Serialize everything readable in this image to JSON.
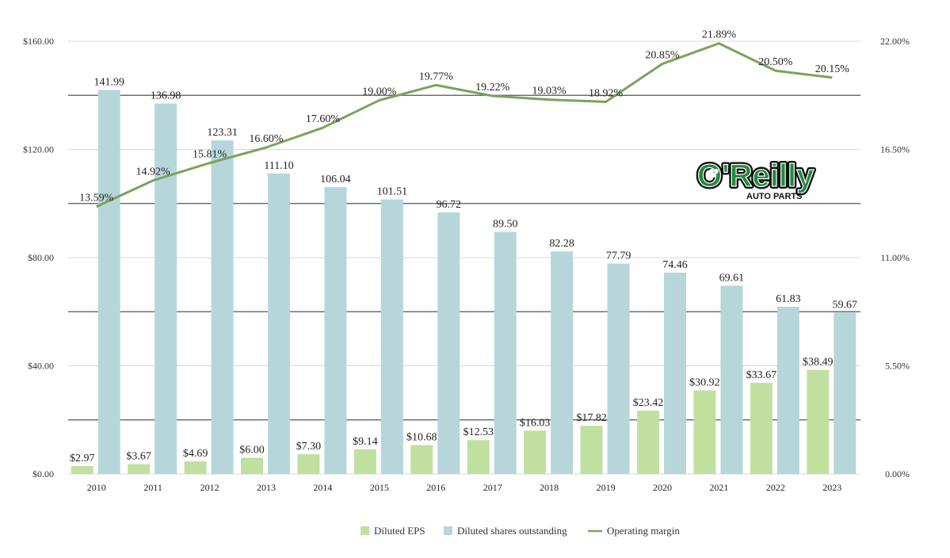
{
  "chart_data": {
    "type": "bar",
    "categories": [
      "2010",
      "2011",
      "2012",
      "2013",
      "2014",
      "2015",
      "2016",
      "2017",
      "2018",
      "2019",
      "2020",
      "2021",
      "2022",
      "2023"
    ],
    "series": [
      {
        "name": "Diluted EPS",
        "kind": "bar",
        "axis": "left",
        "color": "#c1e0a0",
        "values": [
          2.97,
          3.67,
          4.69,
          6.0,
          7.3,
          9.14,
          10.68,
          12.53,
          16.03,
          17.82,
          23.42,
          30.92,
          33.67,
          38.49
        ],
        "labels": [
          "$2.97",
          "$3.67",
          "$4.69",
          "$6.00",
          "$7.30",
          "$9.14",
          "$10.68",
          "$12.53",
          "$16.03",
          "$17.82",
          "$23.42",
          "$30.92",
          "$33.67",
          "$38.49"
        ]
      },
      {
        "name": "Diluted shares outstanding",
        "kind": "bar",
        "axis": "left",
        "color": "#b7d6da",
        "values": [
          141.99,
          136.98,
          123.31,
          111.1,
          106.04,
          101.51,
          96.72,
          89.5,
          82.28,
          77.79,
          74.46,
          69.61,
          61.83,
          59.67
        ],
        "labels": [
          "141.99",
          "136.98",
          "123.31",
          "111.10",
          "106.04",
          "101.51",
          "96.72",
          "89.50",
          "82.28",
          "77.79",
          "74.46",
          "69.61",
          "61.83",
          "59.67"
        ]
      },
      {
        "name": "Operating margin",
        "kind": "line",
        "axis": "right",
        "color": "#7aa35d",
        "values": [
          13.59,
          14.92,
          15.81,
          16.6,
          17.6,
          19.0,
          19.77,
          19.22,
          19.03,
          18.92,
          20.85,
          21.89,
          20.5,
          20.15
        ],
        "labels": [
          "13.59%",
          "14.92%",
          "15.81%",
          "16.60%",
          "17.60%",
          "19.00%",
          "19.77%",
          "19.22%",
          "19.03%",
          "18.92%",
          "20.85%",
          "21.89%",
          "20.50%",
          "20.15%"
        ]
      }
    ],
    "left_axis": {
      "ylim": [
        0,
        160
      ],
      "ticks": [
        "$0.00",
        "$40.00",
        "$80.00",
        "$120.00",
        "$160.00"
      ],
      "tick_values": [
        0,
        40,
        80,
        120,
        160
      ]
    },
    "right_axis": {
      "ylim": [
        0,
        22
      ],
      "ticks": [
        "0.00%",
        "5.50%",
        "11.00%",
        "16.50%",
        "22.00%"
      ],
      "tick_values": [
        0,
        5.5,
        11,
        16.5,
        22
      ]
    },
    "grid": true,
    "legend": "bottom-center",
    "grid_color": "#d9d9d9",
    "grid_dark_color": "#555555"
  },
  "logo": {
    "brand": "O'Reilly",
    "tagline": "AUTO PARTS",
    "brand_color": "#1f8a3c",
    "outline_color": "#111111"
  }
}
